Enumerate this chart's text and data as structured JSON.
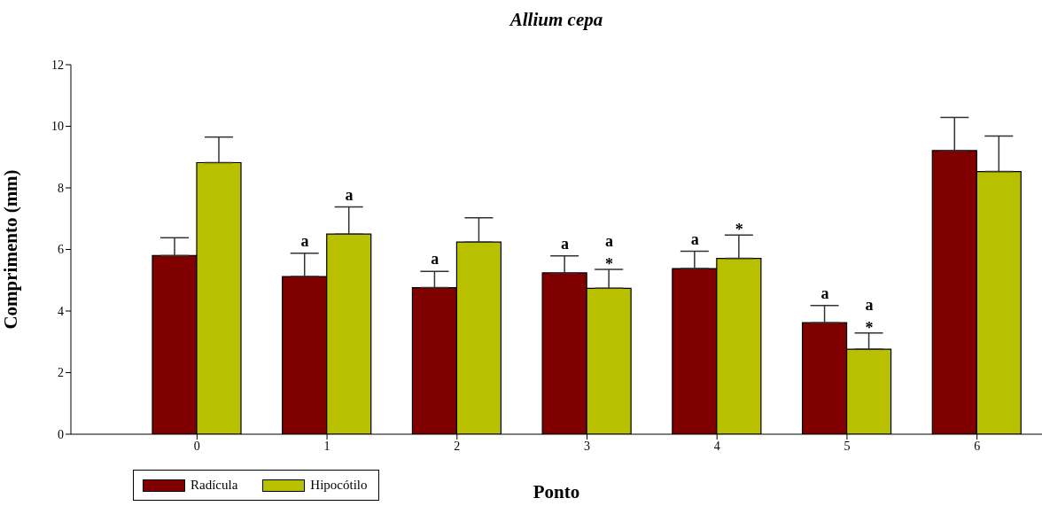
{
  "chart_data": {
    "type": "bar",
    "title": "Allium cepa",
    "xlabel": "Ponto",
    "ylabel": "Comprimento (mm)",
    "categories": [
      "0",
      "1",
      "2",
      "3",
      "4",
      "5",
      "6"
    ],
    "series": [
      {
        "name": "Radícula",
        "color": "#800000",
        "values": [
          5.8,
          5.12,
          4.76,
          5.24,
          5.38,
          3.62,
          9.21
        ],
        "errors": [
          [
            5.8,
            6.38
          ],
          [
            5.12,
            5.88
          ],
          [
            4.76,
            5.29
          ],
          [
            5.24,
            5.79
          ],
          [
            5.38,
            5.94
          ],
          [
            3.62,
            4.18
          ],
          [
            9.21,
            10.29
          ]
        ]
      },
      {
        "name": "Hipocótilo",
        "color": "#b8c000",
        "values": [
          8.82,
          6.5,
          6.24,
          4.74,
          5.71,
          2.76,
          8.53
        ],
        "errors": [
          [
            8.82,
            9.65
          ],
          [
            6.5,
            7.38
          ],
          [
            6.24,
            7.03
          ],
          [
            4.74,
            5.35
          ],
          [
            5.71,
            6.47
          ],
          [
            2.76,
            3.29
          ],
          [
            8.53,
            9.68
          ]
        ]
      }
    ],
    "ylim": [
      0,
      12
    ],
    "yticks": [
      0,
      2,
      4,
      6,
      8,
      10,
      12
    ],
    "grid": false,
    "legend": "bottom left",
    "annotations": [
      {
        "text": "a",
        "x": "1",
        "y": 5.12
      },
      {
        "text": "a",
        "x": "1",
        "y": 6.5
      },
      {
        "text": "a",
        "x": "2",
        "y": 4.76
      },
      {
        "text": "a",
        "x": "3",
        "y": 5.24
      },
      {
        "text": "a",
        "x": "3",
        "y": 4.74
      },
      {
        "text": "*",
        "x": "3",
        "y": 4.74
      },
      {
        "text": "a",
        "x": "4",
        "y": 5.38
      },
      {
        "text": "*",
        "x": "4",
        "y": 5.71
      },
      {
        "text": "a",
        "x": "5",
        "y": 3.62
      },
      {
        "text": "a",
        "x": "5",
        "y": 2.76
      },
      {
        "text": "*",
        "x": "5",
        "y": 2.76
      }
    ]
  }
}
